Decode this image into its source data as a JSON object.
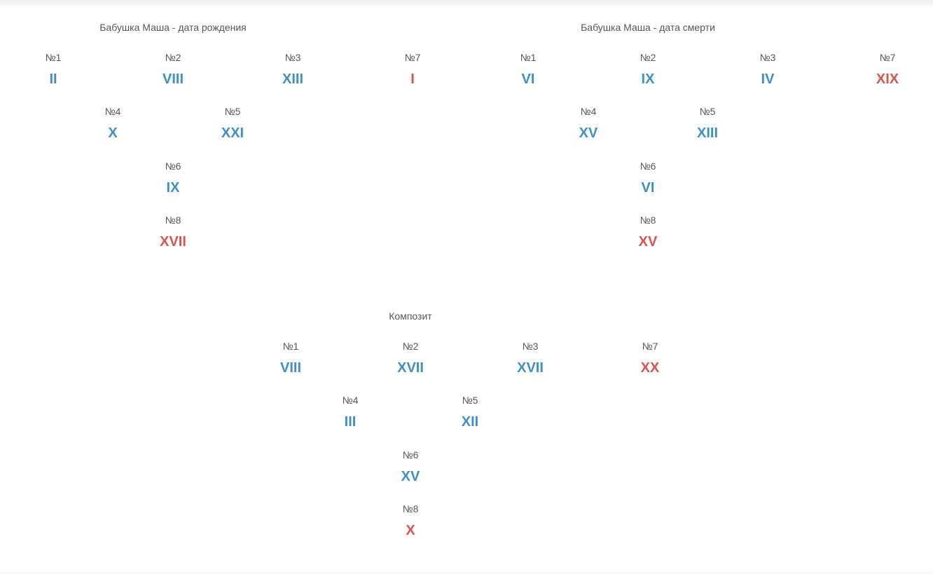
{
  "colors": {
    "primary_value": "#3d8fc6",
    "accent_value": "#d9534f",
    "label": "#555555"
  },
  "birth": {
    "title": "Бабушка Маша - дата рождения",
    "n1": {
      "label": "№1",
      "value": "II"
    },
    "n2": {
      "label": "№2",
      "value": "VIII"
    },
    "n3": {
      "label": "№3",
      "value": "XIII"
    },
    "n7": {
      "label": "№7",
      "value": "I"
    },
    "n4": {
      "label": "№4",
      "value": "X"
    },
    "n5": {
      "label": "№5",
      "value": "XXI"
    },
    "n6": {
      "label": "№6",
      "value": "IX"
    },
    "n8": {
      "label": "№8",
      "value": "XVII"
    }
  },
  "death": {
    "title": "Бабушка Маша - дата смерти",
    "n1": {
      "label": "№1",
      "value": "VI"
    },
    "n2": {
      "label": "№2",
      "value": "IX"
    },
    "n3": {
      "label": "№3",
      "value": "IV"
    },
    "n7": {
      "label": "№7",
      "value": "XIX"
    },
    "n4": {
      "label": "№4",
      "value": "XV"
    },
    "n5": {
      "label": "№5",
      "value": "XIII"
    },
    "n6": {
      "label": "№6",
      "value": "VI"
    },
    "n8": {
      "label": "№8",
      "value": "XV"
    }
  },
  "composite": {
    "title": "Композит",
    "n1": {
      "label": "№1",
      "value": "VIII"
    },
    "n2": {
      "label": "№2",
      "value": "XVII"
    },
    "n3": {
      "label": "№3",
      "value": "XVII"
    },
    "n7": {
      "label": "№7",
      "value": "XX"
    },
    "n4": {
      "label": "№4",
      "value": "III"
    },
    "n5": {
      "label": "№5",
      "value": "XII"
    },
    "n6": {
      "label": "№6",
      "value": "XV"
    },
    "n8": {
      "label": "№8",
      "value": "X"
    }
  }
}
